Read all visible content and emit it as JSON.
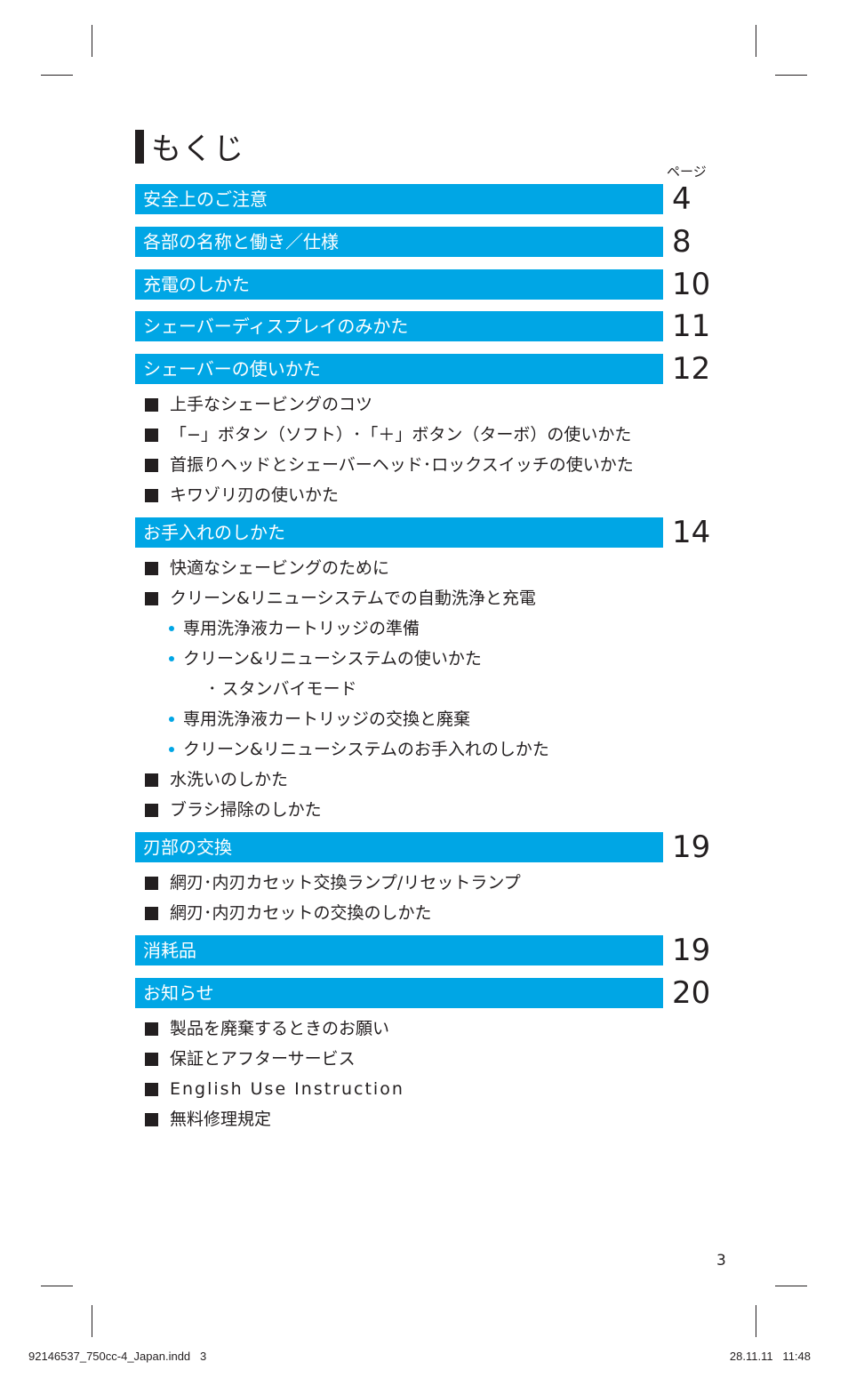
{
  "title": "もくじ",
  "page_label": "ページ",
  "sections": [
    {
      "label": "安全上のご注意",
      "page": "4"
    },
    {
      "label": "各部の名称と働き／仕様",
      "page": "8"
    },
    {
      "label": "充電のしかた",
      "page": "10"
    },
    {
      "label": "シェーバーディスプレイのみかた",
      "page": "11"
    },
    {
      "label": "シェーバーの使いかた",
      "page": "12",
      "items": [
        "上手なシェービングのコツ",
        "「−」ボタン（ソフト）･「＋」ボタン（ターボ）の使いかた",
        "首振りヘッドとシェーバーヘッド･ロックスイッチの使いかた",
        "キワゾリ刃の使いかた"
      ]
    },
    {
      "label": "お手入れのしかた",
      "page": "14",
      "items": [
        "快適なシェービングのために",
        "クリーン&リニューシステムでの自動洗浄と充電"
      ],
      "subitems": [
        "専用洗浄液カートリッジの準備",
        "クリーン&リニューシステムの使いかた"
      ],
      "subsub": "･ スタンバイモード",
      "subitems2": [
        "専用洗浄液カートリッジの交換と廃棄",
        "クリーン&リニューシステムのお手入れのしかた"
      ],
      "items2": [
        "水洗いのしかた",
        "ブラシ掃除のしかた"
      ]
    },
    {
      "label": "刃部の交換",
      "page": "19",
      "items": [
        "網刃･内刃カセット交換ランプ/リセットランプ",
        "網刃･内刃カセットの交換のしかた"
      ]
    },
    {
      "label": "消耗品",
      "page": "19"
    },
    {
      "label": "お知らせ",
      "page": "20",
      "items": [
        "製品を廃棄するときのお願い",
        "保証とアフターサービス",
        "English Use Instruction",
        "無料修理規定"
      ]
    }
  ],
  "folio": "3",
  "slug_left": "92146537_750cc-4_Japan.indd   3",
  "slug_right": "28.11.11   11:48",
  "colors": {
    "accent": "#00a6e5",
    "text": "#231f20"
  }
}
